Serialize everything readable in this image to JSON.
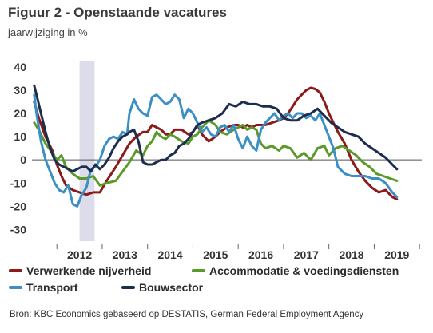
{
  "title": "Figuur 2 - Openstaande vacatures",
  "subtitle": "jaarwijziging in %",
  "source": "Bron: KBC Economics gebaseerd op DESTATIS, German Federal Employment Agency",
  "chart_data": {
    "type": "line",
    "ylim": [
      -35,
      42
    ],
    "yticks": [
      40,
      30,
      20,
      10,
      0,
      -10,
      -20,
      -30
    ],
    "ytick_labels": [
      "40",
      "30",
      "20",
      "10",
      "0",
      "-10",
      "-20",
      "-30"
    ],
    "xlim": [
      2011.45,
      2020.05
    ],
    "xticks": [
      2012,
      2013,
      2014,
      2015,
      2016,
      2017,
      2018,
      2019
    ],
    "xtick_labels": [
      "2012",
      "2013",
      "2014",
      "2015",
      "2016",
      "2017",
      "2018",
      "2019"
    ],
    "shaded_band": [
      2012.5,
      2012.83
    ],
    "grid": false,
    "legend_position": "bottom",
    "series": [
      {
        "name": "Verwerkende nijverheid",
        "color": "#8b1a1a",
        "x": [
          2011.5,
          2011.6,
          2011.75,
          2011.9,
          2012.0,
          2012.1,
          2012.2,
          2012.35,
          2012.5,
          2012.65,
          2012.8,
          2012.95,
          2013.1,
          2013.3,
          2013.45,
          2013.6,
          2013.75,
          2013.9,
          2014.0,
          2014.1,
          2014.2,
          2014.3,
          2014.4,
          2014.5,
          2014.6,
          2014.75,
          2014.9,
          2015.0,
          2015.1,
          2015.2,
          2015.35,
          2015.5,
          2015.6,
          2015.75,
          2015.9,
          2016.0,
          2016.1,
          2016.2,
          2016.3,
          2016.4,
          2016.5,
          2016.6,
          2016.75,
          2016.9,
          2017.0,
          2017.1,
          2017.2,
          2017.3,
          2017.4,
          2017.5,
          2017.6,
          2017.7,
          2017.8,
          2017.9,
          2018.0,
          2018.1,
          2018.2,
          2018.35,
          2018.5,
          2018.65,
          2018.8,
          2018.95,
          2019.1,
          2019.25,
          2019.4,
          2019.5
        ],
        "values": [
          25,
          18,
          10,
          4,
          -2,
          -7,
          -11,
          -13,
          -14,
          -15,
          -14,
          -14,
          -9,
          -3,
          2,
          7,
          10,
          12,
          12,
          15,
          14,
          13,
          11,
          11,
          13,
          13,
          11,
          12,
          15,
          11,
          8,
          10,
          12,
          14,
          15,
          15,
          14,
          15,
          14,
          15,
          15,
          15,
          16,
          17,
          18,
          20,
          23,
          26,
          28,
          30,
          31,
          30.5,
          29,
          25,
          20,
          16,
          12,
          7,
          0,
          -5,
          -9,
          -12,
          -14,
          -13,
          -16,
          -17
        ]
      },
      {
        "name": "Accommodatie & voedingsdiensten",
        "color": "#5a9a2a",
        "x": [
          2011.5,
          2011.6,
          2011.75,
          2011.9,
          2012.0,
          2012.1,
          2012.2,
          2012.35,
          2012.5,
          2012.65,
          2012.8,
          2012.95,
          2013.1,
          2013.3,
          2013.45,
          2013.6,
          2013.75,
          2013.9,
          2014.0,
          2014.1,
          2014.2,
          2014.3,
          2014.4,
          2014.5,
          2014.6,
          2014.75,
          2014.9,
          2015.0,
          2015.1,
          2015.2,
          2015.35,
          2015.5,
          2015.6,
          2015.75,
          2015.9,
          2016.0,
          2016.1,
          2016.2,
          2016.3,
          2016.4,
          2016.5,
          2016.6,
          2016.75,
          2016.9,
          2017.0,
          2017.15,
          2017.3,
          2017.45,
          2017.6,
          2017.75,
          2017.9,
          2018.0,
          2018.15,
          2018.3,
          2018.45,
          2018.6,
          2018.75,
          2018.9,
          2019.05,
          2019.2,
          2019.35,
          2019.5
        ],
        "values": [
          16,
          13,
          7,
          3,
          0,
          2,
          -3,
          -6,
          -8,
          -8,
          -7,
          -11,
          -10,
          -9,
          -5,
          -1,
          4,
          2,
          6,
          8,
          12,
          10,
          9,
          11,
          10,
          8,
          7,
          10,
          11,
          14,
          17,
          15,
          12,
          11,
          13,
          14,
          15,
          13,
          14,
          13,
          7,
          5,
          6,
          4,
          6,
          5,
          1,
          3,
          0,
          5,
          6,
          2,
          5,
          6,
          4,
          2,
          -1,
          -3,
          -6,
          -7,
          -8,
          -9
        ]
      },
      {
        "name": "Transport",
        "color": "#3b8fc4",
        "x": [
          2011.5,
          2011.55,
          2011.65,
          2011.75,
          2011.85,
          2011.95,
          2012.05,
          2012.15,
          2012.25,
          2012.35,
          2012.45,
          2012.55,
          2012.65,
          2012.75,
          2012.85,
          2012.95,
          2013.05,
          2013.15,
          2013.25,
          2013.35,
          2013.45,
          2013.55,
          2013.6,
          2013.7,
          2013.8,
          2013.9,
          2014.0,
          2014.1,
          2014.2,
          2014.3,
          2014.4,
          2014.5,
          2014.6,
          2014.7,
          2014.8,
          2014.9,
          2015.0,
          2015.1,
          2015.2,
          2015.3,
          2015.4,
          2015.5,
          2015.6,
          2015.7,
          2015.8,
          2015.9,
          2016.0,
          2016.1,
          2016.2,
          2016.3,
          2016.4,
          2016.5,
          2016.6,
          2016.7,
          2016.8,
          2016.9,
          2017.0,
          2017.1,
          2017.2,
          2017.3,
          2017.4,
          2017.5,
          2017.6,
          2017.7,
          2017.8,
          2017.9,
          2018.0,
          2018.1,
          2018.2,
          2018.35,
          2018.5,
          2018.65,
          2018.8,
          2018.95,
          2019.1,
          2019.25,
          2019.4,
          2019.5
        ],
        "values": [
          28,
          20,
          8,
          0,
          -5,
          -10,
          -13,
          -14,
          -11,
          -19,
          -20,
          -15,
          -12,
          -4,
          -3,
          0,
          6,
          9,
          10,
          9,
          12,
          11,
          20,
          26,
          22,
          20,
          19,
          27,
          28,
          26,
          24,
          25,
          28,
          26,
          18,
          22,
          20,
          16,
          12,
          14,
          11,
          10,
          14,
          15,
          12,
          15,
          9,
          5,
          10,
          6,
          4,
          13,
          16,
          18,
          20,
          17,
          19,
          20,
          18,
          20,
          20,
          18,
          19,
          17,
          20,
          15,
          10,
          5,
          -3,
          -6,
          -7,
          -7,
          -7,
          -8,
          -8,
          -10,
          -14,
          -16
        ]
      },
      {
        "name": "Bouwsector",
        "color": "#1c2d4e",
        "x": [
          2011.5,
          2011.55,
          2011.65,
          2011.75,
          2011.85,
          2011.95,
          2012.05,
          2012.15,
          2012.25,
          2012.35,
          2012.45,
          2012.55,
          2012.65,
          2012.75,
          2012.85,
          2012.95,
          2013.05,
          2013.15,
          2013.25,
          2013.35,
          2013.45,
          2013.55,
          2013.6,
          2013.7,
          2013.8,
          2013.9,
          2014.0,
          2014.1,
          2014.2,
          2014.3,
          2014.4,
          2014.5,
          2014.6,
          2014.7,
          2014.8,
          2014.9,
          2015.0,
          2015.1,
          2015.2,
          2015.35,
          2015.5,
          2015.65,
          2015.8,
          2015.95,
          2016.1,
          2016.25,
          2016.4,
          2016.55,
          2016.7,
          2016.85,
          2017.0,
          2017.15,
          2017.3,
          2017.45,
          2017.6,
          2017.75,
          2017.9,
          2018.05,
          2018.2,
          2018.35,
          2018.5,
          2018.65,
          2018.8,
          2018.95,
          2019.1,
          2019.25,
          2019.4,
          2019.5
        ],
        "values": [
          32,
          28,
          20,
          12,
          5,
          0,
          -2,
          -3,
          -4,
          -5,
          -4,
          -3,
          -3,
          -5,
          -2,
          -4,
          -2,
          1,
          5,
          8,
          10,
          11,
          12,
          13,
          8,
          -1,
          -2,
          -2,
          -1,
          0,
          0,
          2,
          3,
          6,
          7,
          9,
          12,
          15,
          16,
          17,
          18,
          20,
          24,
          23,
          25,
          24,
          24,
          23,
          23,
          22,
          18,
          17,
          17,
          19,
          20,
          22,
          19,
          16,
          14,
          12,
          11,
          10,
          7,
          5,
          3,
          1,
          -2,
          -4
        ]
      }
    ]
  }
}
